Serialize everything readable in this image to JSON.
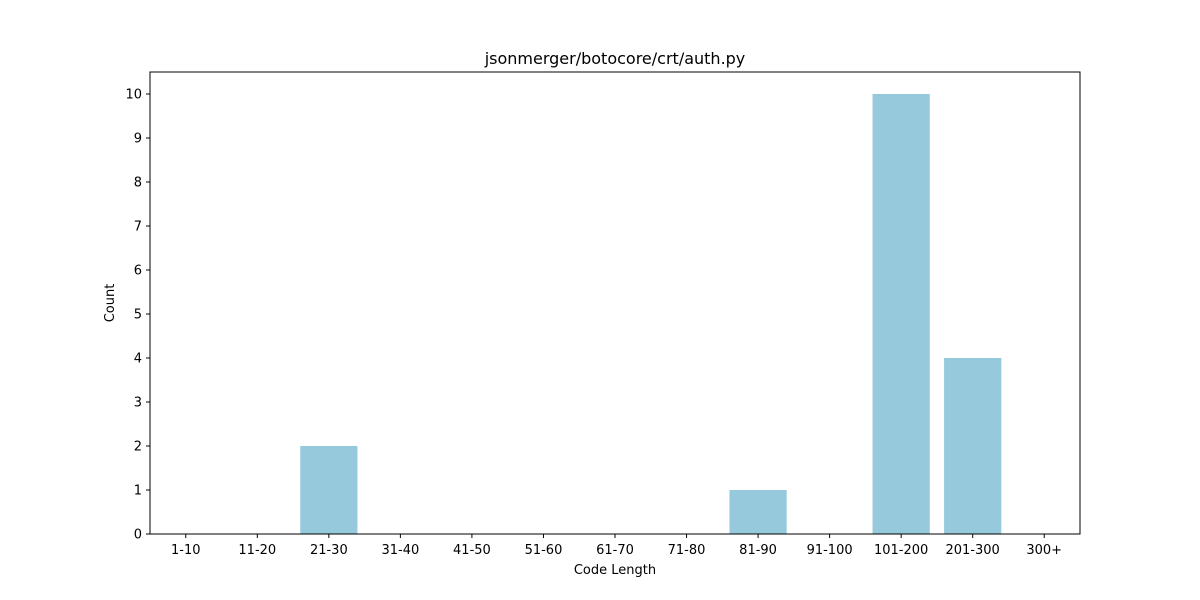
{
  "chart_data": {
    "type": "bar",
    "title": "jsonmerger/botocore/crt/auth.py",
    "xlabel": "Code Length",
    "ylabel": "Count",
    "categories": [
      "1-10",
      "11-20",
      "21-30",
      "31-40",
      "41-50",
      "51-60",
      "61-70",
      "71-80",
      "81-90",
      "91-100",
      "101-200",
      "201-300",
      "300+"
    ],
    "values": [
      0,
      0,
      2,
      0,
      0,
      0,
      0,
      0,
      1,
      0,
      10,
      4,
      0
    ],
    "ylim": [
      0,
      10.5
    ],
    "yticks": [
      0,
      1,
      2,
      3,
      4,
      5,
      6,
      7,
      8,
      9,
      10
    ],
    "bar_color": "#96c9dc",
    "grid": false,
    "legend": "none"
  }
}
